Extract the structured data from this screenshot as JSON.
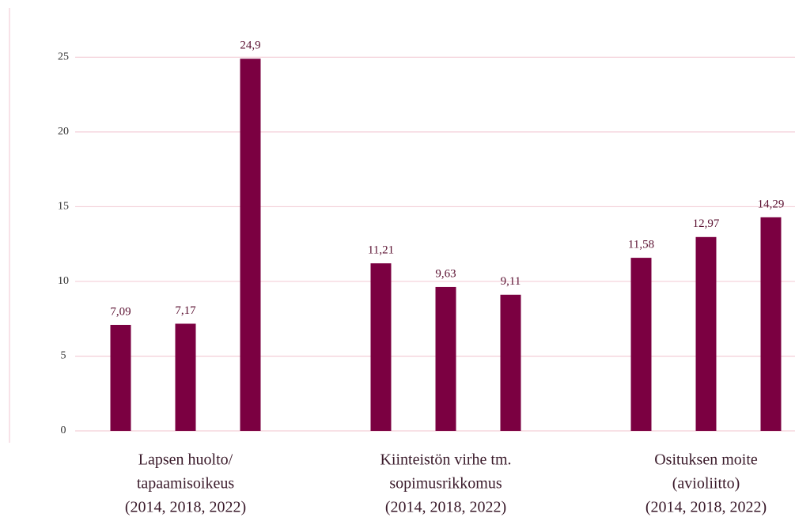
{
  "chart_data": {
    "type": "bar",
    "categories": [
      [
        "Lapsen huolto/",
        "tapaamisoikeus",
        "(2014, 2018, 2022)"
      ],
      [
        "Kiinteistön virhe tm.",
        "sopimusrikkomus",
        "(2014, 2018, 2022)"
      ],
      [
        "Osituksen moite",
        "(avioliitto)",
        "(2014, 2018, 2022)"
      ]
    ],
    "series": [
      {
        "color": "#7b0041",
        "values": [
          7.09,
          11.21,
          11.58
        ],
        "value_labels": [
          "7,09",
          "11,21",
          "11,58"
        ]
      },
      {
        "color": "#7b0041",
        "values": [
          7.17,
          9.63,
          12.97
        ],
        "value_labels": [
          "7,17",
          "9,63",
          "12,97"
        ]
      },
      {
        "color": "#7b0041",
        "values": [
          24.9,
          9.11,
          14.29
        ],
        "value_labels": [
          "24,9",
          "9,11",
          "14,29"
        ]
      }
    ],
    "ylim": [
      0,
      28.3
    ],
    "yticks": [
      0,
      5,
      10,
      15,
      20,
      25
    ],
    "grid": true
  }
}
